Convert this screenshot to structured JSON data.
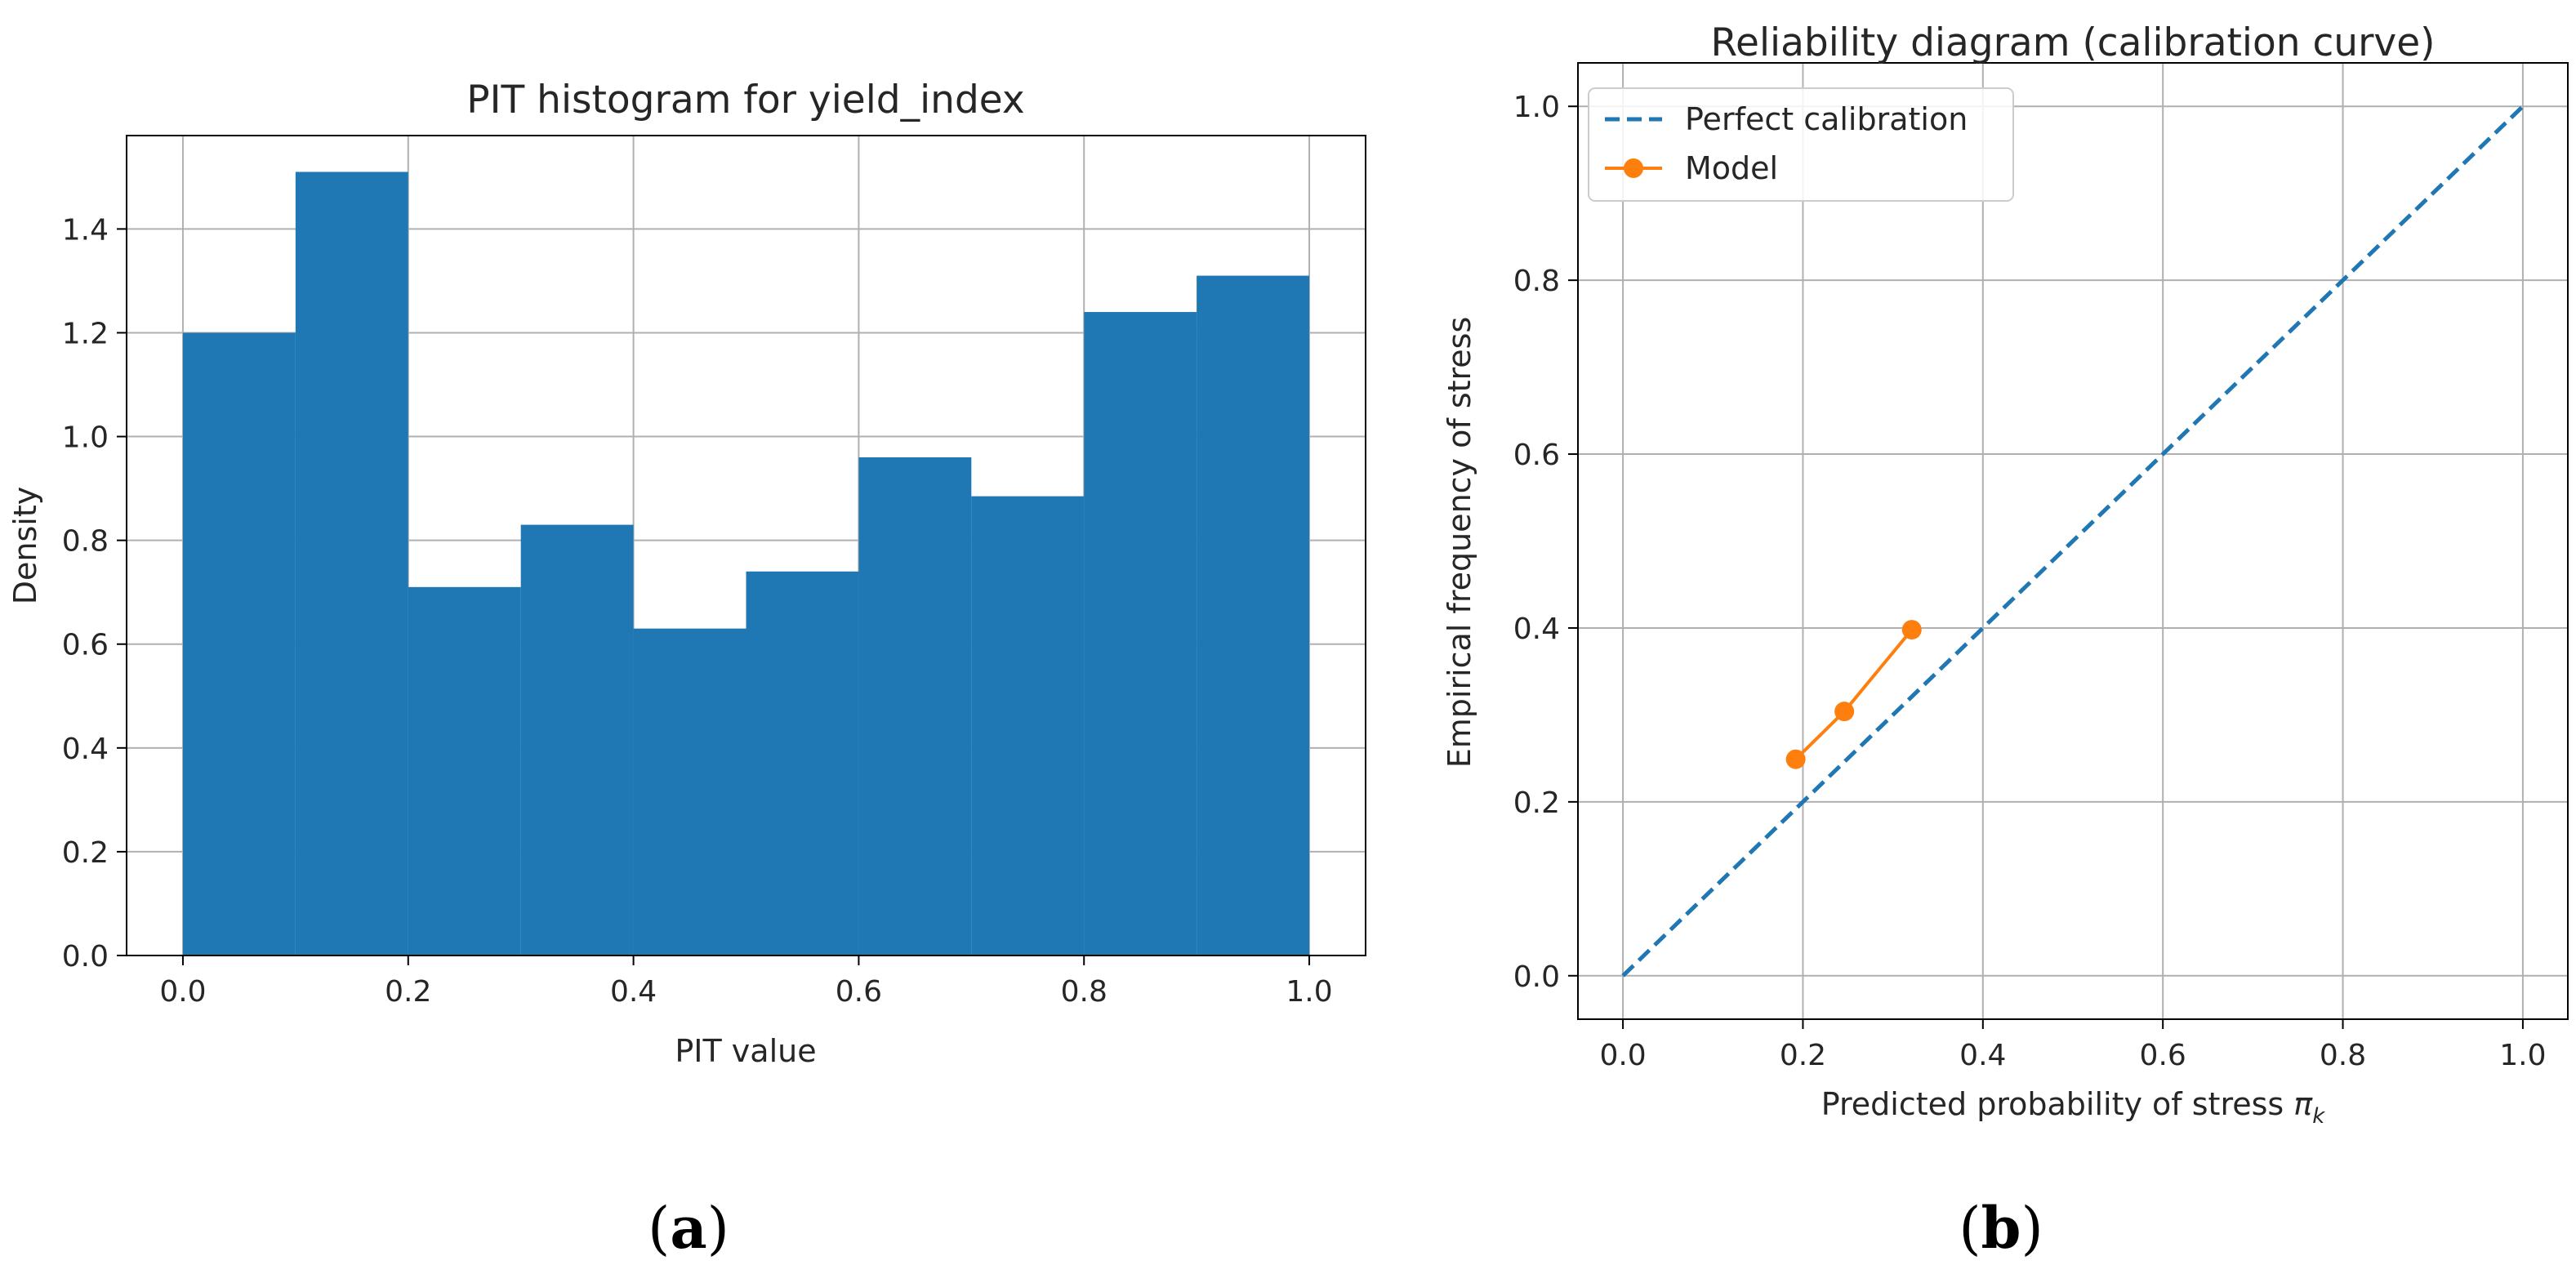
{
  "colors": {
    "hist_bar": "#1f77b4",
    "perfect_line": "#1f77b4",
    "model_line": "#ff7f0e"
  },
  "chart_data": [
    {
      "type": "bar",
      "title": "PIT histogram for yield_index",
      "xlabel": "PIT value",
      "ylabel": "Density",
      "bin_edges": [
        0.0,
        0.1,
        0.2,
        0.3,
        0.4,
        0.5,
        0.6,
        0.7,
        0.8,
        0.9,
        1.0
      ],
      "values": [
        1.2,
        1.51,
        0.71,
        0.83,
        0.63,
        0.74,
        0.96,
        0.885,
        1.24,
        1.31
      ],
      "xlim": [
        -0.05,
        1.05
      ],
      "ylim": [
        0,
        1.58
      ],
      "xticks": [
        "0.0",
        "0.2",
        "0.4",
        "0.6",
        "0.8",
        "1.0"
      ],
      "yticks": [
        "0.0",
        "0.2",
        "0.4",
        "0.6",
        "0.8",
        "1.0",
        "1.2",
        "1.4"
      ],
      "grid": true,
      "panel_label": {
        "open": "(",
        "letter": "a",
        "close": ")"
      }
    },
    {
      "type": "line",
      "title": "Reliability diagram (calibration curve)",
      "xlabel": "Predicted probability of stress ",
      "xlabel_symbol": "π",
      "xlabel_subscript": "k",
      "ylabel": "Empirical frequency of stress",
      "xlim": [
        -0.05,
        1.05
      ],
      "ylim": [
        -0.05,
        1.05
      ],
      "xticks": [
        "0.0",
        "0.2",
        "0.4",
        "0.6",
        "0.8",
        "1.0"
      ],
      "yticks": [
        "0.0",
        "0.2",
        "0.4",
        "0.6",
        "0.8",
        "1.0"
      ],
      "grid": true,
      "legend_position": "top-left",
      "series": [
        {
          "name": "Perfect calibration",
          "style": "dashed",
          "x": [
            0.0,
            1.0
          ],
          "y": [
            0.0,
            1.0
          ]
        },
        {
          "name": "Model",
          "style": "solid-markers",
          "x": [
            0.192,
            0.246,
            0.321
          ],
          "y": [
            0.249,
            0.304,
            0.398
          ]
        }
      ],
      "panel_label": {
        "open": "(",
        "letter": "b",
        "close": ")"
      }
    }
  ]
}
